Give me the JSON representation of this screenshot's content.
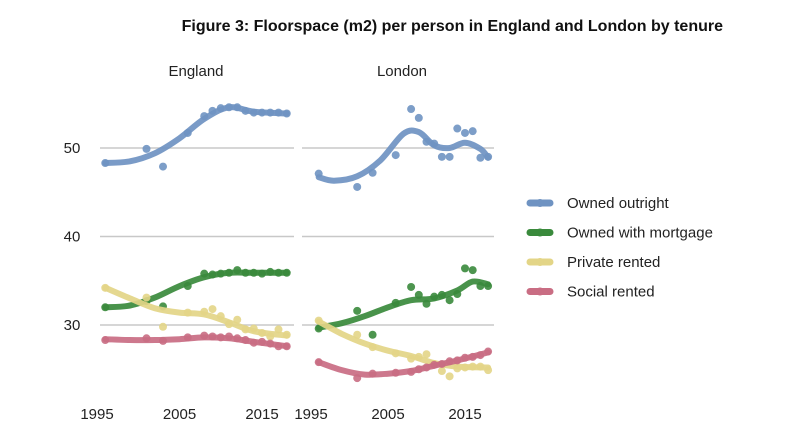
{
  "chart_data": {
    "type": "scatter",
    "title": "Figure 3: Floorspace (m2) per person in England and London by tenure",
    "y_ticks": [
      30,
      40,
      50
    ],
    "x_ticks": [
      1995,
      2005,
      2015
    ],
    "ylim": [
      24,
      56
    ],
    "xlim": [
      1995,
      2018.5
    ],
    "grid": true,
    "legend_position": "right",
    "legend": [
      {
        "name": "Owned outright",
        "color": "#6f93c2"
      },
      {
        "name": "Owned with mortgage",
        "color": "#3a8a3c"
      },
      {
        "name": "Private rented",
        "color": "#e3d587"
      },
      {
        "name": "Social rented",
        "color": "#c96d83"
      }
    ],
    "panels": [
      {
        "title": "England",
        "series": [
          {
            "name": "Owned outright",
            "color": "#6f93c2",
            "points": [
              [
                1996,
                48.3
              ],
              [
                2001,
                49.9
              ],
              [
                2003,
                47.9
              ],
              [
                2006,
                51.7
              ],
              [
                2008,
                53.6
              ],
              [
                2009,
                54.2
              ],
              [
                2010,
                54.5
              ],
              [
                2011,
                54.6
              ],
              [
                2012,
                54.6
              ],
              [
                2013,
                54.2
              ],
              [
                2014,
                54.0
              ],
              [
                2015,
                54.0
              ],
              [
                2016,
                54.0
              ],
              [
                2017,
                54.0
              ],
              [
                2018,
                53.9
              ]
            ],
            "trend": [
              [
                1996,
                48.3
              ],
              [
                1999,
                48.5
              ],
              [
                2002,
                49.4
              ],
              [
                2005,
                51.1
              ],
              [
                2008,
                53.3
              ],
              [
                2011,
                54.6
              ],
              [
                2014,
                54.1
              ],
              [
                2018,
                53.9
              ]
            ]
          },
          {
            "name": "Owned with mortgage",
            "color": "#3a8a3c",
            "points": [
              [
                1996,
                32.0
              ],
              [
                2001,
                32.7
              ],
              [
                2003,
                32.1
              ],
              [
                2006,
                34.4
              ],
              [
                2008,
                35.8
              ],
              [
                2009,
                35.7
              ],
              [
                2010,
                35.8
              ],
              [
                2011,
                35.9
              ],
              [
                2012,
                36.2
              ],
              [
                2013,
                35.9
              ],
              [
                2014,
                35.9
              ],
              [
                2015,
                35.8
              ],
              [
                2016,
                36.0
              ],
              [
                2017,
                35.9
              ],
              [
                2018,
                35.9
              ]
            ],
            "trend": [
              [
                1996,
                32.0
              ],
              [
                1999,
                32.2
              ],
              [
                2002,
                33.1
              ],
              [
                2005,
                34.4
              ],
              [
                2008,
                35.4
              ],
              [
                2011,
                35.9
              ],
              [
                2014,
                35.9
              ],
              [
                2018,
                35.9
              ]
            ]
          },
          {
            "name": "Private rented",
            "color": "#e3d587",
            "points": [
              [
                1996,
                34.2
              ],
              [
                2001,
                33.1
              ],
              [
                2003,
                29.8
              ],
              [
                2006,
                31.4
              ],
              [
                2008,
                31.5
              ],
              [
                2009,
                31.8
              ],
              [
                2010,
                31.0
              ],
              [
                2011,
                30.1
              ],
              [
                2012,
                30.6
              ],
              [
                2013,
                29.5
              ],
              [
                2014,
                29.6
              ],
              [
                2015,
                29.1
              ],
              [
                2016,
                28.7
              ],
              [
                2017,
                29.5
              ],
              [
                2018,
                28.9
              ]
            ],
            "trend": [
              [
                1996,
                34.2
              ],
              [
                1999,
                33.0
              ],
              [
                2002,
                31.9
              ],
              [
                2005,
                31.4
              ],
              [
                2008,
                31.2
              ],
              [
                2011,
                30.3
              ],
              [
                2014,
                29.3
              ],
              [
                2018,
                28.8
              ]
            ]
          },
          {
            "name": "Social rented",
            "color": "#c96d83",
            "points": [
              [
                1996,
                28.3
              ],
              [
                2001,
                28.5
              ],
              [
                2003,
                28.2
              ],
              [
                2006,
                28.6
              ],
              [
                2008,
                28.8
              ],
              [
                2009,
                28.7
              ],
              [
                2010,
                28.6
              ],
              [
                2011,
                28.7
              ],
              [
                2012,
                28.5
              ],
              [
                2013,
                28.3
              ],
              [
                2014,
                28.0
              ],
              [
                2015,
                28.1
              ],
              [
                2016,
                27.9
              ],
              [
                2017,
                27.6
              ],
              [
                2018,
                27.6
              ]
            ],
            "trend": [
              [
                1996,
                28.4
              ],
              [
                1999,
                28.3
              ],
              [
                2002,
                28.3
              ],
              [
                2005,
                28.4
              ],
              [
                2008,
                28.6
              ],
              [
                2011,
                28.5
              ],
              [
                2014,
                28.1
              ],
              [
                2018,
                27.6
              ]
            ]
          }
        ]
      },
      {
        "title": "London",
        "series": [
          {
            "name": "Owned outright",
            "color": "#6f93c2",
            "points": [
              [
                1996,
                47.1
              ],
              [
                2001,
                45.6
              ],
              [
                2003,
                47.2
              ],
              [
                2006,
                49.2
              ],
              [
                2008,
                54.4
              ],
              [
                2009,
                53.4
              ],
              [
                2010,
                50.7
              ],
              [
                2011,
                50.5
              ],
              [
                2012,
                49.0
              ],
              [
                2013,
                49.0
              ],
              [
                2014,
                52.2
              ],
              [
                2015,
                51.7
              ],
              [
                2016,
                51.9
              ],
              [
                2017,
                48.9
              ],
              [
                2018,
                49.0
              ]
            ],
            "trend": [
              [
                1996,
                46.7
              ],
              [
                1998,
                46.3
              ],
              [
                2001,
                46.8
              ],
              [
                2004,
                48.6
              ],
              [
                2007,
                51.6
              ],
              [
                2009,
                51.8
              ],
              [
                2011,
                50.3
              ],
              [
                2013,
                50.0
              ],
              [
                2015,
                50.6
              ],
              [
                2017,
                49.9
              ],
              [
                2018,
                48.9
              ]
            ]
          },
          {
            "name": "Owned with mortgage",
            "color": "#3a8a3c",
            "points": [
              [
                1996,
                29.6
              ],
              [
                2001,
                31.6
              ],
              [
                2003,
                28.9
              ],
              [
                2006,
                32.5
              ],
              [
                2008,
                34.3
              ],
              [
                2009,
                33.4
              ],
              [
                2010,
                32.4
              ],
              [
                2011,
                33.2
              ],
              [
                2012,
                33.4
              ],
              [
                2013,
                32.8
              ],
              [
                2014,
                33.5
              ],
              [
                2015,
                36.4
              ],
              [
                2016,
                36.2
              ],
              [
                2017,
                34.4
              ],
              [
                2018,
                34.4
              ]
            ],
            "trend": [
              [
                1996,
                29.7
              ],
              [
                1999,
                30.2
              ],
              [
                2002,
                31.0
              ],
              [
                2005,
                32.0
              ],
              [
                2008,
                32.8
              ],
              [
                2011,
                33.0
              ],
              [
                2014,
                33.9
              ],
              [
                2016,
                34.9
              ],
              [
                2018,
                34.6
              ]
            ]
          },
          {
            "name": "Private rented",
            "color": "#e3d587",
            "points": [
              [
                1996,
                30.5
              ],
              [
                2001,
                28.9
              ],
              [
                2003,
                27.5
              ],
              [
                2006,
                26.8
              ],
              [
                2008,
                26.2
              ],
              [
                2009,
                26.4
              ],
              [
                2010,
                26.7
              ],
              [
                2011,
                25.6
              ],
              [
                2012,
                24.8
              ],
              [
                2013,
                24.2
              ],
              [
                2014,
                25.1
              ],
              [
                2015,
                25.2
              ],
              [
                2016,
                25.3
              ],
              [
                2017,
                25.3
              ],
              [
                2018,
                24.9
              ]
            ],
            "trend": [
              [
                1996,
                30.4
              ],
              [
                1999,
                29.0
              ],
              [
                2002,
                27.9
              ],
              [
                2005,
                27.1
              ],
              [
                2008,
                26.5
              ],
              [
                2011,
                25.7
              ],
              [
                2014,
                25.3
              ],
              [
                2018,
                25.2
              ]
            ]
          },
          {
            "name": "Social rented",
            "color": "#c96d83",
            "points": [
              [
                1996,
                25.8
              ],
              [
                2001,
                24.0
              ],
              [
                2003,
                24.5
              ],
              [
                2006,
                24.6
              ],
              [
                2008,
                24.7
              ],
              [
                2009,
                25.0
              ],
              [
                2010,
                25.2
              ],
              [
                2011,
                25.5
              ],
              [
                2012,
                25.6
              ],
              [
                2013,
                25.9
              ],
              [
                2014,
                26.0
              ],
              [
                2015,
                26.3
              ],
              [
                2016,
                26.4
              ],
              [
                2017,
                26.6
              ],
              [
                2018,
                27.0
              ]
            ],
            "trend": [
              [
                1996,
                25.8
              ],
              [
                1999,
                24.9
              ],
              [
                2002,
                24.4
              ],
              [
                2005,
                24.5
              ],
              [
                2008,
                24.8
              ],
              [
                2011,
                25.4
              ],
              [
                2014,
                26.0
              ],
              [
                2018,
                26.9
              ]
            ]
          }
        ]
      }
    ]
  }
}
